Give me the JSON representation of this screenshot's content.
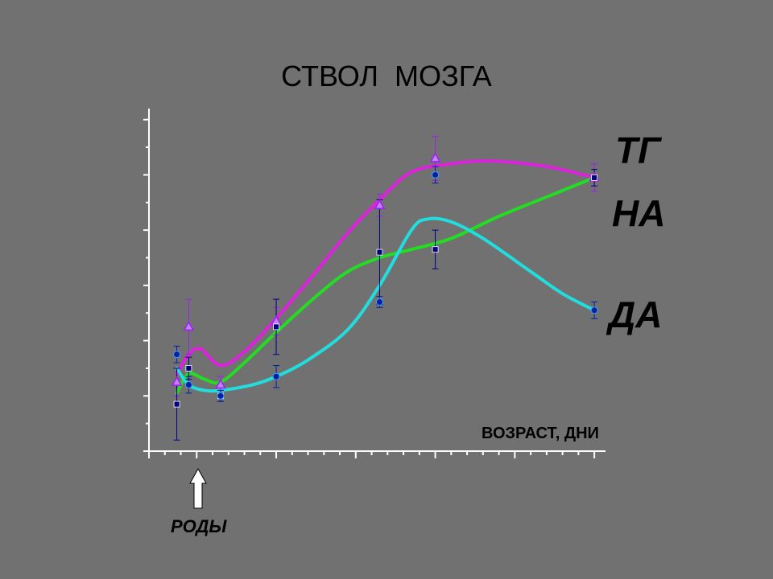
{
  "chart_data": {
    "type": "line",
    "title": "СТВОЛ  МОЗГА",
    "xlabel": "ВОЗРАСТ, ДНИ",
    "ylabel": "",
    "grid": false,
    "annotation": {
      "text": "РОДЫ",
      "x": 4,
      "arrow": "up"
    },
    "xlim": [
      0,
      57
    ],
    "ylim": [
      0,
      12.4
    ],
    "series": [
      {
        "name": "ТГ",
        "color": "#dd22dd",
        "marker": "triangle",
        "marker_color": "#a020f0",
        "points": [
          {
            "x": 3.5,
            "y": 2.5,
            "err": 0.5
          },
          {
            "x": 5,
            "y": 4.5,
            "err": 1.0
          },
          {
            "x": 9,
            "y": 2.4,
            "err": 0.3
          },
          {
            "x": 16,
            "y": 4.7,
            "err": 0.5
          },
          {
            "x": 29,
            "y": 8.9,
            "err": 0.4
          },
          {
            "x": 36,
            "y": 10.6,
            "err": 0.8
          },
          {
            "x": 56,
            "y": 9.9,
            "err": 0.5
          }
        ]
      },
      {
        "name": "НА",
        "color": "#22dd22",
        "marker": "square",
        "marker_color": "#000080",
        "points": [
          {
            "x": 3.5,
            "y": 1.7,
            "err": 1.3
          },
          {
            "x": 5,
            "y": 3.0,
            "err": 0.4
          },
          {
            "x": 9,
            "y": 2.0,
            "err": 0.2
          },
          {
            "x": 16,
            "y": 4.5,
            "err": 1.0
          },
          {
            "x": 29,
            "y": 7.2,
            "err": 1.9
          },
          {
            "x": 36,
            "y": 7.3,
            "err": 0.7
          },
          {
            "x": 56,
            "y": 9.9,
            "err": 0.3
          }
        ]
      },
      {
        "name": "ДА",
        "color": "#22dddd",
        "marker": "circle",
        "marker_color": "#0020a0",
        "points": [
          {
            "x": 3.5,
            "y": 3.5,
            "err": 0.3
          },
          {
            "x": 5,
            "y": 2.4,
            "err": 0.3
          },
          {
            "x": 9,
            "y": 2.0,
            "err": 0.2
          },
          {
            "x": 16,
            "y": 2.7,
            "err": 0.4
          },
          {
            "x": 29,
            "y": 5.4,
            "err": 0.2
          },
          {
            "x": 36,
            "y": 10.0,
            "err": 0.3
          },
          {
            "x": 56,
            "y": 5.1,
            "err": 0.3
          }
        ]
      }
    ],
    "curves": [
      {
        "series": "ТГ",
        "path": [
          [
            3.5,
            2.8
          ],
          [
            5,
            3.5
          ],
          [
            6.5,
            3.7
          ],
          [
            9,
            3.1
          ],
          [
            12,
            3.6
          ],
          [
            16,
            4.8
          ],
          [
            21,
            6.5
          ],
          [
            25,
            7.9
          ],
          [
            29,
            9.1
          ],
          [
            33,
            10.1
          ],
          [
            38,
            10.4
          ],
          [
            43,
            10.5
          ],
          [
            50,
            10.3
          ],
          [
            56,
            9.9
          ]
        ]
      },
      {
        "series": "НА",
        "path": [
          [
            3.5,
            2.1
          ],
          [
            5,
            2.8
          ],
          [
            7,
            2.6
          ],
          [
            9,
            2.5
          ],
          [
            12,
            3.2
          ],
          [
            16,
            4.3
          ],
          [
            21,
            5.6
          ],
          [
            25,
            6.5
          ],
          [
            29,
            7.0
          ],
          [
            33,
            7.3
          ],
          [
            38,
            7.7
          ],
          [
            44,
            8.5
          ],
          [
            50,
            9.2
          ],
          [
            56,
            9.9
          ]
        ]
      },
      {
        "series": "ДА",
        "path": [
          [
            3.5,
            3.0
          ],
          [
            5,
            2.4
          ],
          [
            7,
            2.2
          ],
          [
            9,
            2.2
          ],
          [
            13,
            2.4
          ],
          [
            16,
            2.7
          ],
          [
            20,
            3.3
          ],
          [
            25,
            4.4
          ],
          [
            29,
            6.0
          ],
          [
            33,
            8.0
          ],
          [
            35,
            8.4
          ],
          [
            38,
            8.3
          ],
          [
            42,
            7.7
          ],
          [
            48,
            6.5
          ],
          [
            52,
            5.7
          ],
          [
            56,
            5.1
          ]
        ]
      }
    ]
  }
}
